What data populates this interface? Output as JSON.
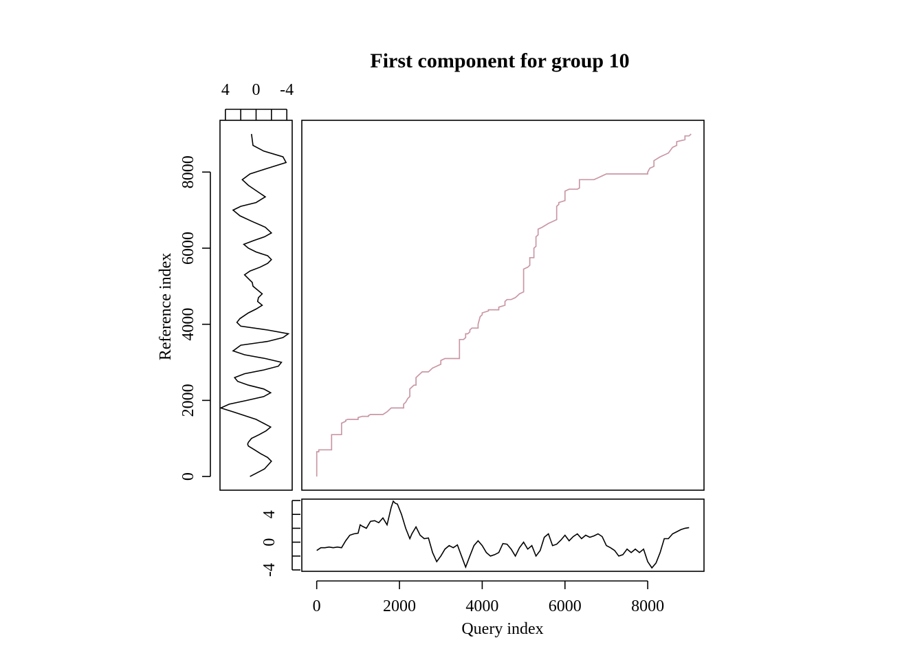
{
  "chart_data": [
    {
      "panel": "alignment",
      "type": "line",
      "title": "First component for group 10",
      "xlabel": "Query index",
      "ylabel": "Reference index",
      "xlim": [
        -360,
        9360
      ],
      "ylim": [
        -360,
        9360
      ],
      "xticks": [
        0,
        2000,
        4000,
        6000,
        8000
      ],
      "yticks": [
        0,
        2000,
        4000,
        6000,
        8000
      ],
      "grid": false,
      "color": "#c997a4",
      "series": [
        {
          "x": [
            0,
            0,
            50,
            50,
            360,
            360,
            600,
            600,
            700,
            700,
            750,
            1000,
            1000,
            1100,
            1250,
            1250,
            1300,
            1600,
            1700,
            1800,
            2100,
            2100,
            2150,
            2200,
            2250,
            2250,
            2350,
            2400,
            2400,
            2450,
            2500,
            2550,
            2700,
            2800,
            2900,
            3000,
            3000,
            3100,
            3450,
            3450,
            3550,
            3600,
            3600,
            3650,
            3700,
            3700,
            3750,
            3900,
            3900,
            3950,
            4000,
            4000,
            4150,
            4150,
            4400,
            4400,
            4550,
            4550,
            4600,
            4700,
            4800,
            4850,
            4900,
            5000,
            5000,
            5100,
            5150,
            5150,
            5250,
            5250,
            5300,
            5300,
            5350,
            5350,
            5450,
            5600,
            5800,
            5800,
            5850,
            5850,
            6000,
            6000,
            6100,
            6300,
            6350,
            6350,
            6500,
            6700,
            6800,
            6900,
            7000,
            8000,
            8000,
            8050,
            8150,
            8150,
            8300,
            8400,
            8500,
            8600,
            8700,
            8700,
            8900,
            8900,
            9000,
            9050
          ],
          "y": [
            0,
            650,
            650,
            700,
            700,
            1100,
            1100,
            1400,
            1450,
            1480,
            1500,
            1500,
            1550,
            1580,
            1580,
            1600,
            1630,
            1630,
            1700,
            1800,
            1800,
            1900,
            1950,
            2050,
            2100,
            2300,
            2400,
            2400,
            2600,
            2650,
            2700,
            2750,
            2750,
            2850,
            2900,
            2950,
            3050,
            3100,
            3100,
            3600,
            3600,
            3650,
            3750,
            3750,
            3800,
            3850,
            3900,
            3900,
            4000,
            4200,
            4250,
            4300,
            4350,
            4380,
            4380,
            4450,
            4500,
            4600,
            4650,
            4650,
            4700,
            4750,
            4800,
            4850,
            5450,
            5500,
            5550,
            5750,
            5750,
            6000,
            6050,
            6300,
            6350,
            6500,
            6550,
            6650,
            6750,
            7100,
            7150,
            7200,
            7250,
            7500,
            7550,
            7550,
            7580,
            7800,
            7800,
            7800,
            7850,
            7900,
            7950,
            7950,
            8000,
            8100,
            8150,
            8300,
            8400,
            8450,
            8500,
            8650,
            8700,
            8800,
            8850,
            8950,
            8950,
            9000
          ]
        }
      ]
    },
    {
      "panel": "reference",
      "type": "line",
      "xlim": [
        -4.7,
        4.7
      ],
      "xticks": [
        4,
        0,
        -4
      ],
      "xtick_labels": [
        "4",
        "0",
        "-4"
      ],
      "ylim": [
        -360,
        9360
      ],
      "series": [
        {
          "y": [
            0,
            200,
            400,
            500,
            600,
            700,
            800,
            850,
            900,
            1000,
            1100,
            1200,
            1300,
            1500,
            1700,
            1800,
            1900,
            2000,
            2100,
            2200,
            2300,
            2400,
            2500,
            2600,
            2700,
            2800,
            2900,
            3000,
            3100,
            3200,
            3300,
            3450,
            3550,
            3650,
            3750,
            3850,
            3950,
            4050,
            4150,
            4300,
            4400,
            4500,
            4600,
            4700,
            4800,
            4900,
            5000,
            5100,
            5200,
            5300,
            5400,
            5500,
            5600,
            5700,
            5800,
            5900,
            6000,
            6100,
            6200,
            6300,
            6400,
            6550,
            6700,
            6850,
            7000,
            7100,
            7200,
            7350,
            7500,
            7650,
            7800,
            7950,
            8100,
            8250,
            8400,
            8550,
            8700,
            8850,
            9000
          ],
          "v": [
            0.8,
            -1.1,
            -2.0,
            -1.5,
            -0.6,
            0.2,
            1.0,
            1.1,
            1.0,
            0.6,
            -0.4,
            -1.3,
            -1.9,
            0.0,
            3.0,
            4.6,
            3.5,
            1.2,
            -1.0,
            -1.9,
            -1.0,
            1.0,
            2.4,
            2.8,
            1.5,
            -1.0,
            -2.9,
            -3.3,
            -1.2,
            1.5,
            3.0,
            2.0,
            -1.5,
            -3.5,
            -4.2,
            -1.5,
            2.0,
            2.5,
            2.1,
            1.0,
            0.0,
            -0.8,
            -0.2,
            -0.3,
            -0.8,
            -0.2,
            0.4,
            0.5,
            1.0,
            1.5,
            0.8,
            -0.5,
            -1.5,
            -2.0,
            -1.5,
            0.0,
            1.0,
            1.6,
            0.3,
            -1.1,
            -2.0,
            -1.2,
            0.5,
            2.1,
            3.0,
            2.0,
            0.0,
            -1.2,
            -0.1,
            1.0,
            1.8,
            0.8,
            -1.5,
            -3.9,
            -3.5,
            -1.0,
            0.4,
            0.5,
            0.6
          ]
        }
      ]
    },
    {
      "panel": "query",
      "type": "line",
      "xlim": [
        -360,
        9360
      ],
      "ylim": [
        -4.2,
        6.2
      ],
      "yticks": [
        -4,
        -2,
        0,
        2,
        4,
        6
      ],
      "ytick_labels": [
        "-4",
        "0",
        "4"
      ],
      "ytick_label_values": [
        -4,
        0,
        4
      ],
      "series": [
        {
          "x": [
            0,
            100,
            200,
            300,
            400,
            500,
            600,
            700,
            800,
            900,
            1000,
            1050,
            1100,
            1200,
            1300,
            1400,
            1500,
            1600,
            1700,
            1800,
            1850,
            1900,
            1950,
            2050,
            2150,
            2250,
            2300,
            2400,
            2500,
            2600,
            2700,
            2800,
            2900,
            3000,
            3100,
            3200,
            3300,
            3400,
            3500,
            3600,
            3700,
            3800,
            3900,
            4000,
            4100,
            4200,
            4300,
            4400,
            4500,
            4600,
            4700,
            4800,
            4900,
            5000,
            5100,
            5200,
            5300,
            5400,
            5500,
            5600,
            5700,
            5800,
            5900,
            6000,
            6100,
            6200,
            6300,
            6400,
            6500,
            6600,
            6700,
            6800,
            6900,
            7000,
            7100,
            7200,
            7300,
            7400,
            7500,
            7600,
            7700,
            7800,
            7900,
            8000,
            8100,
            8200,
            8300,
            8400,
            8500,
            8600,
            8700,
            8800,
            8900,
            9000
          ],
          "y": [
            -1.2,
            -0.8,
            -0.8,
            -0.7,
            -0.8,
            -0.7,
            -0.8,
            0.2,
            1.0,
            1.2,
            1.3,
            2.5,
            2.3,
            2.0,
            3.0,
            3.1,
            2.8,
            3.5,
            2.5,
            5.0,
            5.9,
            5.6,
            5.5,
            4.0,
            2.0,
            0.5,
            1.2,
            2.2,
            1.0,
            0.5,
            0.6,
            -1.5,
            -2.8,
            -2.0,
            -1.0,
            -0.5,
            -0.8,
            -0.4,
            -2.0,
            -3.6,
            -2.0,
            -0.5,
            0.2,
            -0.5,
            -1.5,
            -2.0,
            -1.8,
            -1.5,
            -0.2,
            -0.3,
            -1.0,
            -2.0,
            -0.8,
            0.0,
            -1.0,
            -0.5,
            -2.0,
            -1.2,
            0.7,
            1.2,
            -0.5,
            -0.3,
            0.3,
            1.0,
            0.2,
            0.8,
            1.2,
            0.5,
            1.0,
            0.7,
            0.9,
            1.2,
            0.8,
            -0.5,
            -0.8,
            -1.2,
            -2.0,
            -1.8,
            -1.0,
            -1.5,
            -1.0,
            -1.5,
            -1.0,
            -2.8,
            -3.7,
            -3.0,
            -1.5,
            0.5,
            0.5,
            1.2,
            1.5,
            1.8,
            2.0,
            2.1
          ]
        }
      ]
    }
  ]
}
